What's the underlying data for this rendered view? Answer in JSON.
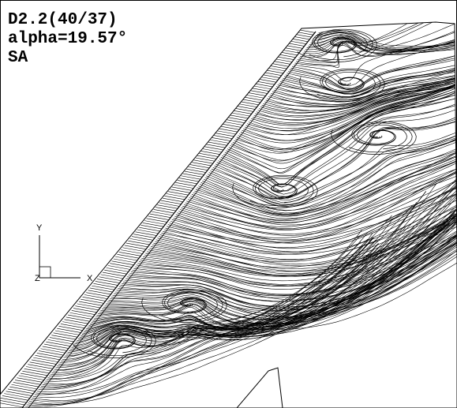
{
  "annotation": {
    "lines": [
      "D2.2(40/37)",
      "alpha=19.57°",
      "SA"
    ]
  },
  "axes": {
    "x": "X",
    "y": "Y",
    "z": "Z"
  }
}
